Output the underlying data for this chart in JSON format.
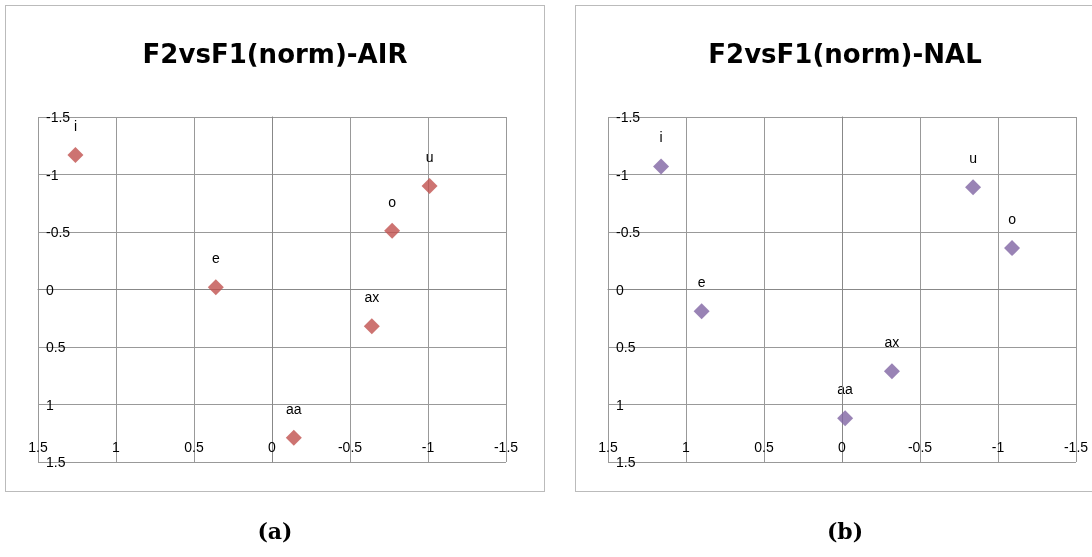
{
  "chart_data": [
    {
      "type": "scatter",
      "title": "F2vsF1(norm)-AIR",
      "series": [
        {
          "color": "#c0504d",
          "x": [
            1.26,
            0.36,
            -0.14,
            -0.77,
            -1.01,
            -0.64
          ],
          "values": [
            -1.17,
            -0.02,
            1.29,
            -0.51,
            -0.9,
            0.32
          ]
        }
      ],
      "xlim": [
        1.5,
        -1.5
      ],
      "xticks": [
        1.5,
        1,
        0.5,
        0,
        -0.5,
        -1,
        -1.5
      ],
      "ylim": [
        1.5,
        -1.5
      ],
      "yticks": [
        -1.5,
        -1,
        -0.5,
        0,
        0.5,
        1,
        1.5
      ],
      "grid": true,
      "marker": "diamond",
      "annotations": [
        {
          "text": "i",
          "x": 1.26,
          "y": -1.17
        },
        {
          "text": "e",
          "x": 0.36,
          "y": -0.02
        },
        {
          "text": "aa",
          "x": -0.14,
          "y": 1.29
        },
        {
          "text": "o",
          "x": -0.77,
          "y": -0.51
        },
        {
          "text": "u",
          "x": -1.01,
          "y": -0.9
        },
        {
          "text": "ax",
          "x": -0.64,
          "y": 0.32
        },
        "(a)"
      ]
    },
    {
      "type": "scatter",
      "title": "F2vsF1(norm)-NAL",
      "series": [
        {
          "color": "#8064a2",
          "x": [
            1.16,
            0.9,
            -0.02,
            -1.09,
            -0.84,
            -0.32
          ],
          "values": [
            -1.07,
            0.19,
            1.12,
            -0.36,
            -0.89,
            0.71
          ]
        }
      ],
      "xlim": [
        1.5,
        -1.5
      ],
      "xticks": [
        1.5,
        1,
        0.5,
        0,
        -0.5,
        -1,
        -1.5
      ],
      "ylim": [
        1.5,
        -1.5
      ],
      "yticks": [
        -1.5,
        -1,
        -0.5,
        0,
        0.5,
        1,
        1.5
      ],
      "grid": true,
      "marker": "diamond",
      "annotations": [
        {
          "text": "i",
          "x": 1.16,
          "y": -1.07
        },
        {
          "text": "e",
          "x": 0.9,
          "y": 0.19
        },
        {
          "text": "aa",
          "x": -0.02,
          "y": 1.12
        },
        {
          "text": "o",
          "x": -1.09,
          "y": -0.36
        },
        {
          "text": "u",
          "x": -0.84,
          "y": -0.89
        },
        {
          "text": "ax",
          "x": -0.32,
          "y": 0.71
        },
        "(b)"
      ]
    }
  ]
}
